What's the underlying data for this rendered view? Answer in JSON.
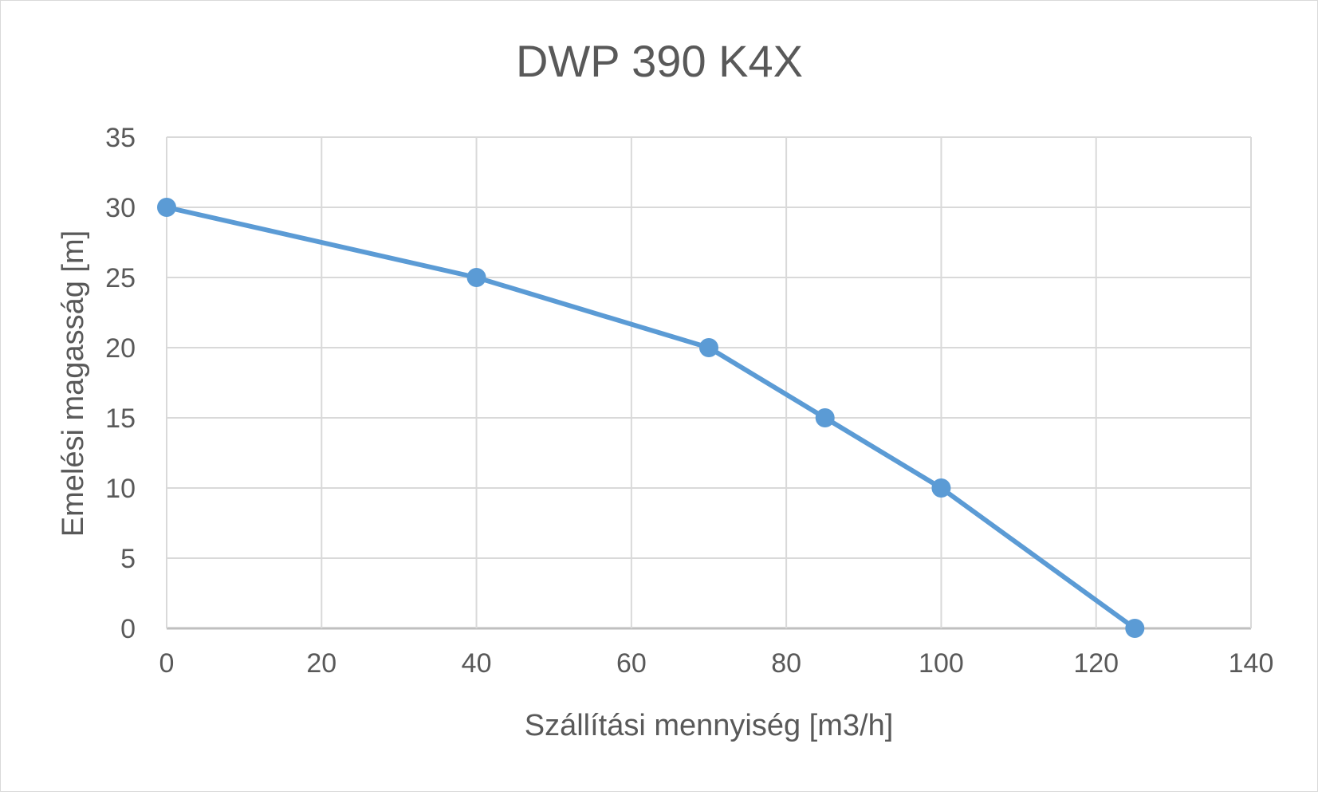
{
  "chart_data": {
    "type": "line",
    "title": "DWP 390 K4X",
    "xlabel": "Szállítási mennyiség [m3/h]",
    "ylabel": "Emelési magasság [m]",
    "xlim": [
      0,
      140
    ],
    "ylim": [
      0,
      35
    ],
    "xticks": [
      0,
      20,
      40,
      60,
      80,
      100,
      120,
      140
    ],
    "yticks": [
      0,
      5,
      10,
      15,
      20,
      25,
      30,
      35
    ],
    "grid": true,
    "legend": "none",
    "series": [
      {
        "x": [
          0,
          40,
          70,
          85,
          100,
          125
        ],
        "y": [
          30,
          25,
          20,
          15,
          10,
          0
        ],
        "color": "#5b9bd5",
        "markers": true
      }
    ]
  }
}
